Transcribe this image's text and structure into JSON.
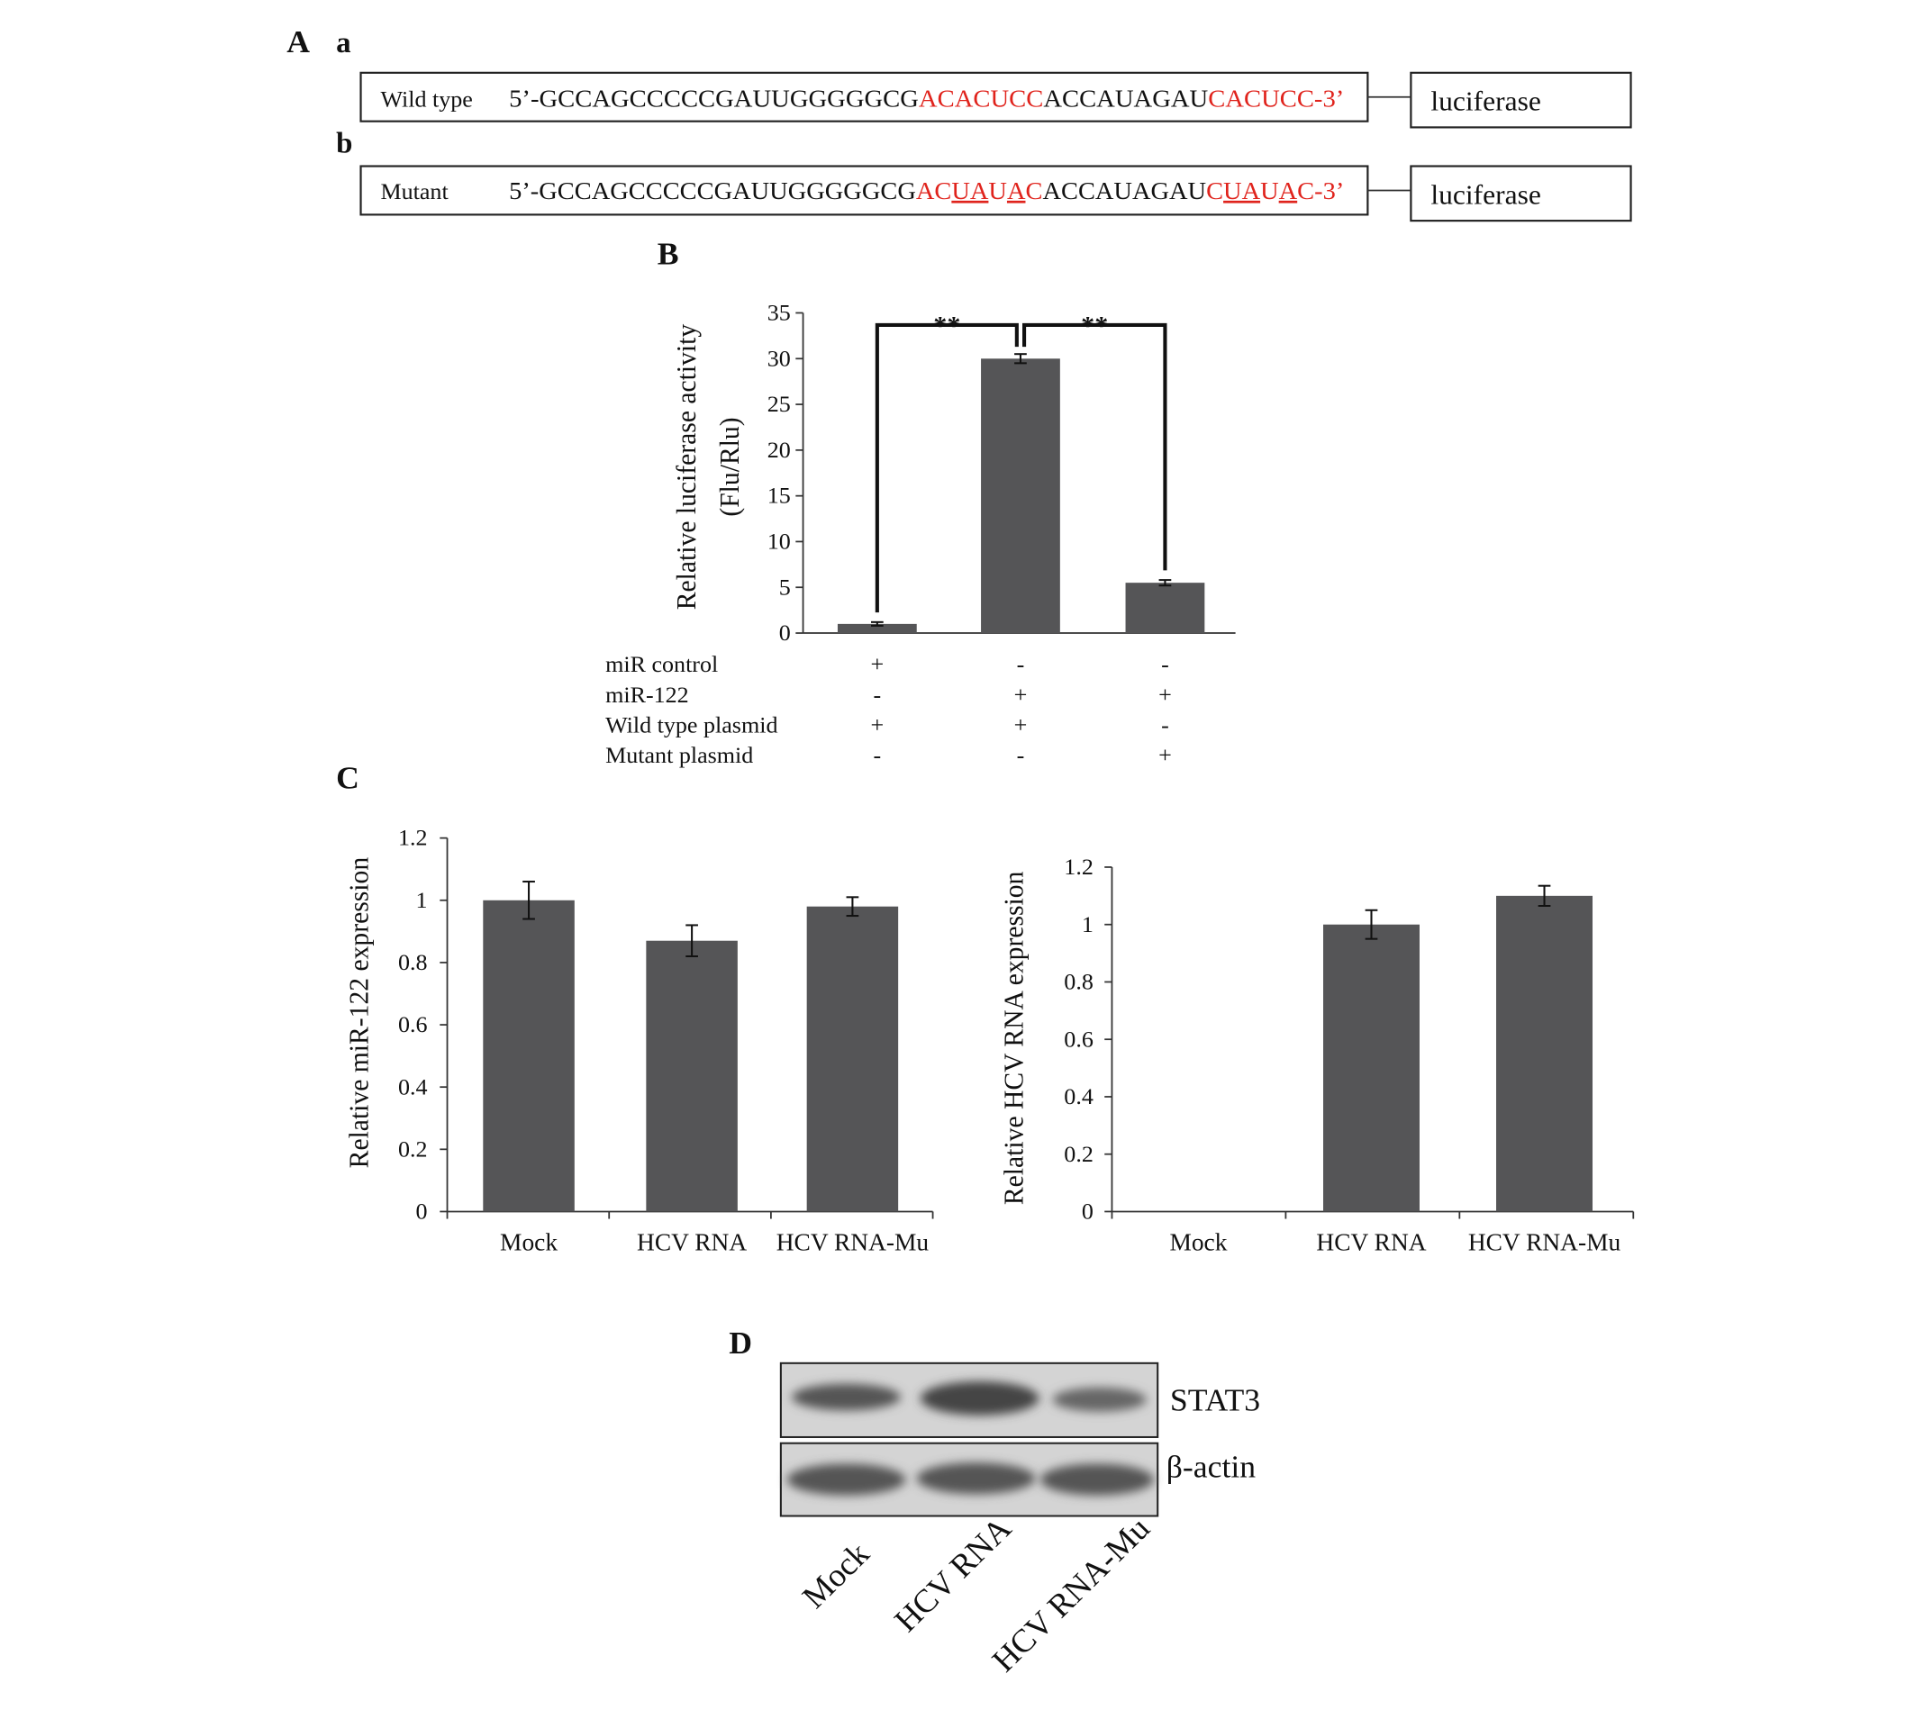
{
  "panel_a": {
    "label": "A",
    "rows": [
      {
        "label": "a",
        "name": "Wild type",
        "reporter": "luciferase",
        "segments": [
          {
            "text": "5’-GCCAGCCCCCGAUUGGGGGCG",
            "color": "#111111"
          },
          {
            "text": "ACACUCC",
            "color": "#e0231c"
          },
          {
            "text": "ACCAUAGAU",
            "color": "#111111"
          },
          {
            "text": "CACUCC-3’",
            "color": "#e0231c"
          }
        ]
      },
      {
        "label": "b",
        "name": "Mutant",
        "reporter": "luciferase",
        "segments": [
          {
            "text": "5’-GCCAGCCCCCGAUUGGGGGCG",
            "color": "#111111"
          },
          {
            "text": "AC",
            "color": "#e0231c"
          },
          {
            "text": "UA",
            "color": "#e0231c",
            "underline": true
          },
          {
            "text": "U",
            "color": "#e0231c"
          },
          {
            "text": "A",
            "color": "#e0231c",
            "underline": true
          },
          {
            "text": "C",
            "color": "#e0231c"
          },
          {
            "text": "ACCAUAGAU",
            "color": "#111111"
          },
          {
            "text": "C",
            "color": "#e0231c"
          },
          {
            "text": "UA",
            "color": "#e0231c",
            "underline": true
          },
          {
            "text": "U",
            "color": "#e0231c"
          },
          {
            "text": "A",
            "color": "#e0231c",
            "underline": true
          },
          {
            "text": "C-3’",
            "color": "#e0231c"
          }
        ]
      }
    ]
  },
  "chart_data": [
    {
      "type": "bar",
      "label": "B",
      "ylabel": [
        "Relative luciferase activity",
        "(Flu/Rlu)"
      ],
      "categories": [
        null,
        null,
        null
      ],
      "values": [
        1.0,
        30.0,
        5.5
      ],
      "errors": [
        0.2,
        0.5,
        0.3
      ],
      "color": "#555557",
      "ylim": [
        0,
        35
      ],
      "yticks": [
        0,
        5,
        10,
        15,
        20,
        25,
        30,
        35
      ],
      "annotations": [
        "**",
        "**"
      ],
      "conditions": [
        {
          "label": "miR control",
          "signs": [
            "+",
            "-",
            "-"
          ]
        },
        {
          "label": "miR-122",
          "signs": [
            "-",
            "+",
            "+"
          ]
        },
        {
          "label": "Wild type plasmid",
          "signs": [
            "+",
            "+",
            "-"
          ]
        },
        {
          "label": "Mutant plasmid",
          "signs": [
            "-",
            "-",
            "+"
          ]
        }
      ]
    },
    {
      "type": "bar",
      "label": "C",
      "ylabel": [
        "Relative miR-122 expression"
      ],
      "categories": [
        "Mock",
        "HCV RNA",
        "HCV RNA-Mu"
      ],
      "values": [
        1.0,
        0.87,
        0.98
      ],
      "errors": [
        0.06,
        0.05,
        0.03
      ],
      "color": "#555557",
      "ylim": [
        0,
        1.2
      ],
      "yticks": [
        0,
        0.2,
        0.4,
        0.6,
        0.8,
        1,
        1.2
      ]
    },
    {
      "type": "bar",
      "ylabel": [
        "Relative HCV RNA expression"
      ],
      "categories": [
        "Mock",
        "HCV RNA",
        "HCV RNA-Mu"
      ],
      "values": [
        0,
        1.0,
        1.1
      ],
      "errors": [
        null,
        0.05,
        0.035
      ],
      "color": "#555557",
      "ylim": [
        0,
        1.2
      ],
      "yticks": [
        0,
        0.2,
        0.4,
        0.6,
        0.8,
        1,
        1.2
      ]
    }
  ],
  "panel_d": {
    "label": "D",
    "blots": [
      "STAT3",
      "β-actin"
    ],
    "lanes": [
      "Mock",
      "HCV RNA",
      "HCV RNA-Mu"
    ]
  }
}
